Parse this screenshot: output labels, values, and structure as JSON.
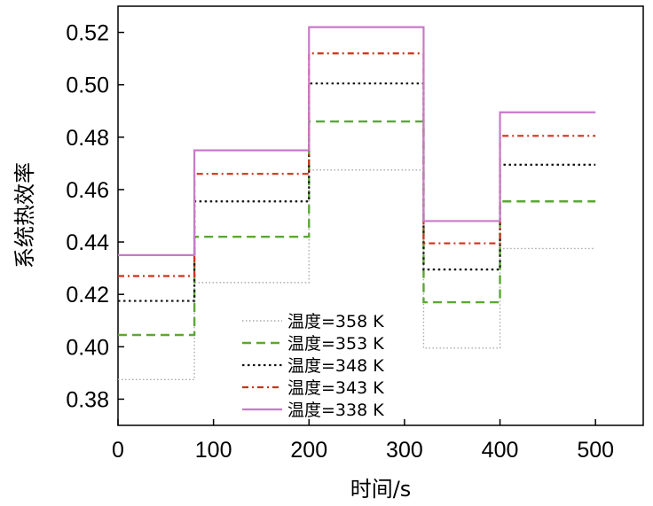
{
  "chart_data": {
    "type": "line",
    "xlabel": "时间/s",
    "ylabel": "系统热效率",
    "xlim": [
      0,
      550
    ],
    "ylim": [
      0.37,
      0.53
    ],
    "xticks": [
      "0",
      "100",
      "200",
      "300",
      "400",
      "500"
    ],
    "yticks": [
      "0.38",
      "0.40",
      "0.42",
      "0.44",
      "0.46",
      "0.48",
      "0.50",
      "0.52"
    ],
    "legend_position": "bottom-center",
    "breakpoints": [
      0,
      80,
      200,
      320,
      400,
      500
    ],
    "series": [
      {
        "name": "温度=358 K",
        "style": "dotted",
        "color": "#aaaaaa",
        "values": [
          0.3875,
          0.4245,
          0.4675,
          0.3995,
          0.4375
        ]
      },
      {
        "name": "温度=353 K",
        "style": "dashed",
        "color": "#5aa832",
        "values": [
          0.4045,
          0.442,
          0.486,
          0.417,
          0.4555
        ]
      },
      {
        "name": "温度=348 K",
        "style": "dotted-dense",
        "color": "#111111",
        "values": [
          0.4175,
          0.4555,
          0.5005,
          0.4295,
          0.4695
        ]
      },
      {
        "name": "温度=343 K",
        "style": "dash-dot",
        "color": "#d0301a",
        "values": [
          0.427,
          0.466,
          0.512,
          0.4395,
          0.4805
        ]
      },
      {
        "name": "温度=338 K",
        "style": "solid",
        "color": "#c87ac8",
        "values": [
          0.435,
          0.475,
          0.522,
          0.448,
          0.4895
        ]
      }
    ]
  }
}
